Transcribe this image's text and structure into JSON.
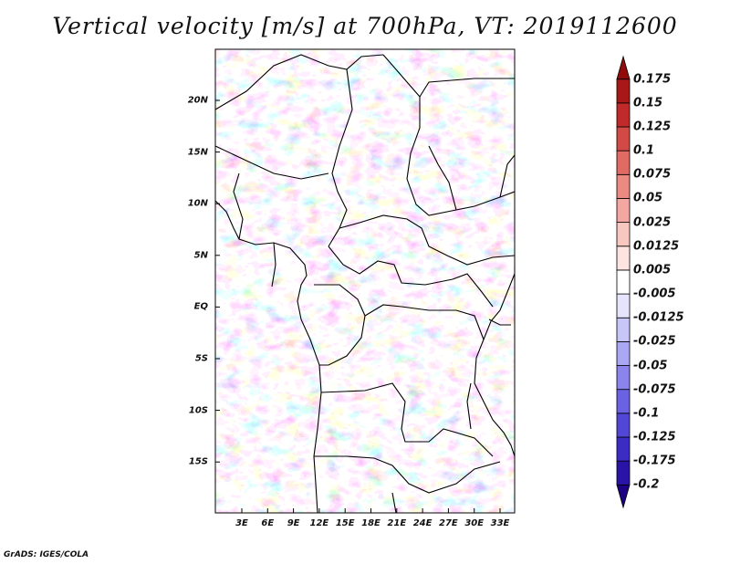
{
  "title": "Vertical velocity [m/s] at 700hPa, VT: 2019112600",
  "credit": "GrADS: IGES/COLA",
  "map": {
    "lat_ticks": [
      "20N",
      "15N",
      "10N",
      "5N",
      "EQ",
      "5S",
      "10S",
      "15S"
    ],
    "lon_ticks": [
      "3E",
      "6E",
      "9E",
      "12E",
      "15E",
      "18E",
      "21E",
      "24E",
      "27E",
      "30E",
      "33E"
    ]
  },
  "colorbar": {
    "labels": [
      "0.175",
      "0.15",
      "0.125",
      "0.1",
      "0.075",
      "0.05",
      "0.025",
      "0.0125",
      "0.005",
      "-0.005",
      "-0.0125",
      "-0.025",
      "-0.05",
      "-0.075",
      "-0.1",
      "-0.125",
      "-0.175",
      "-0.2"
    ],
    "colors": [
      "#1e0082",
      "#2a14a8",
      "#3c2cc4",
      "#5246d6",
      "#6a62e2",
      "#8a84ec",
      "#aaa8f2",
      "#c8c6f8",
      "#e6e4fc",
      "#ffffff",
      "#fde4e0",
      "#f8c8c0",
      "#f2a8a0",
      "#ea8a82",
      "#e06a64",
      "#d24a46",
      "#c02a2a",
      "#a81818",
      "#900c0c"
    ]
  }
}
